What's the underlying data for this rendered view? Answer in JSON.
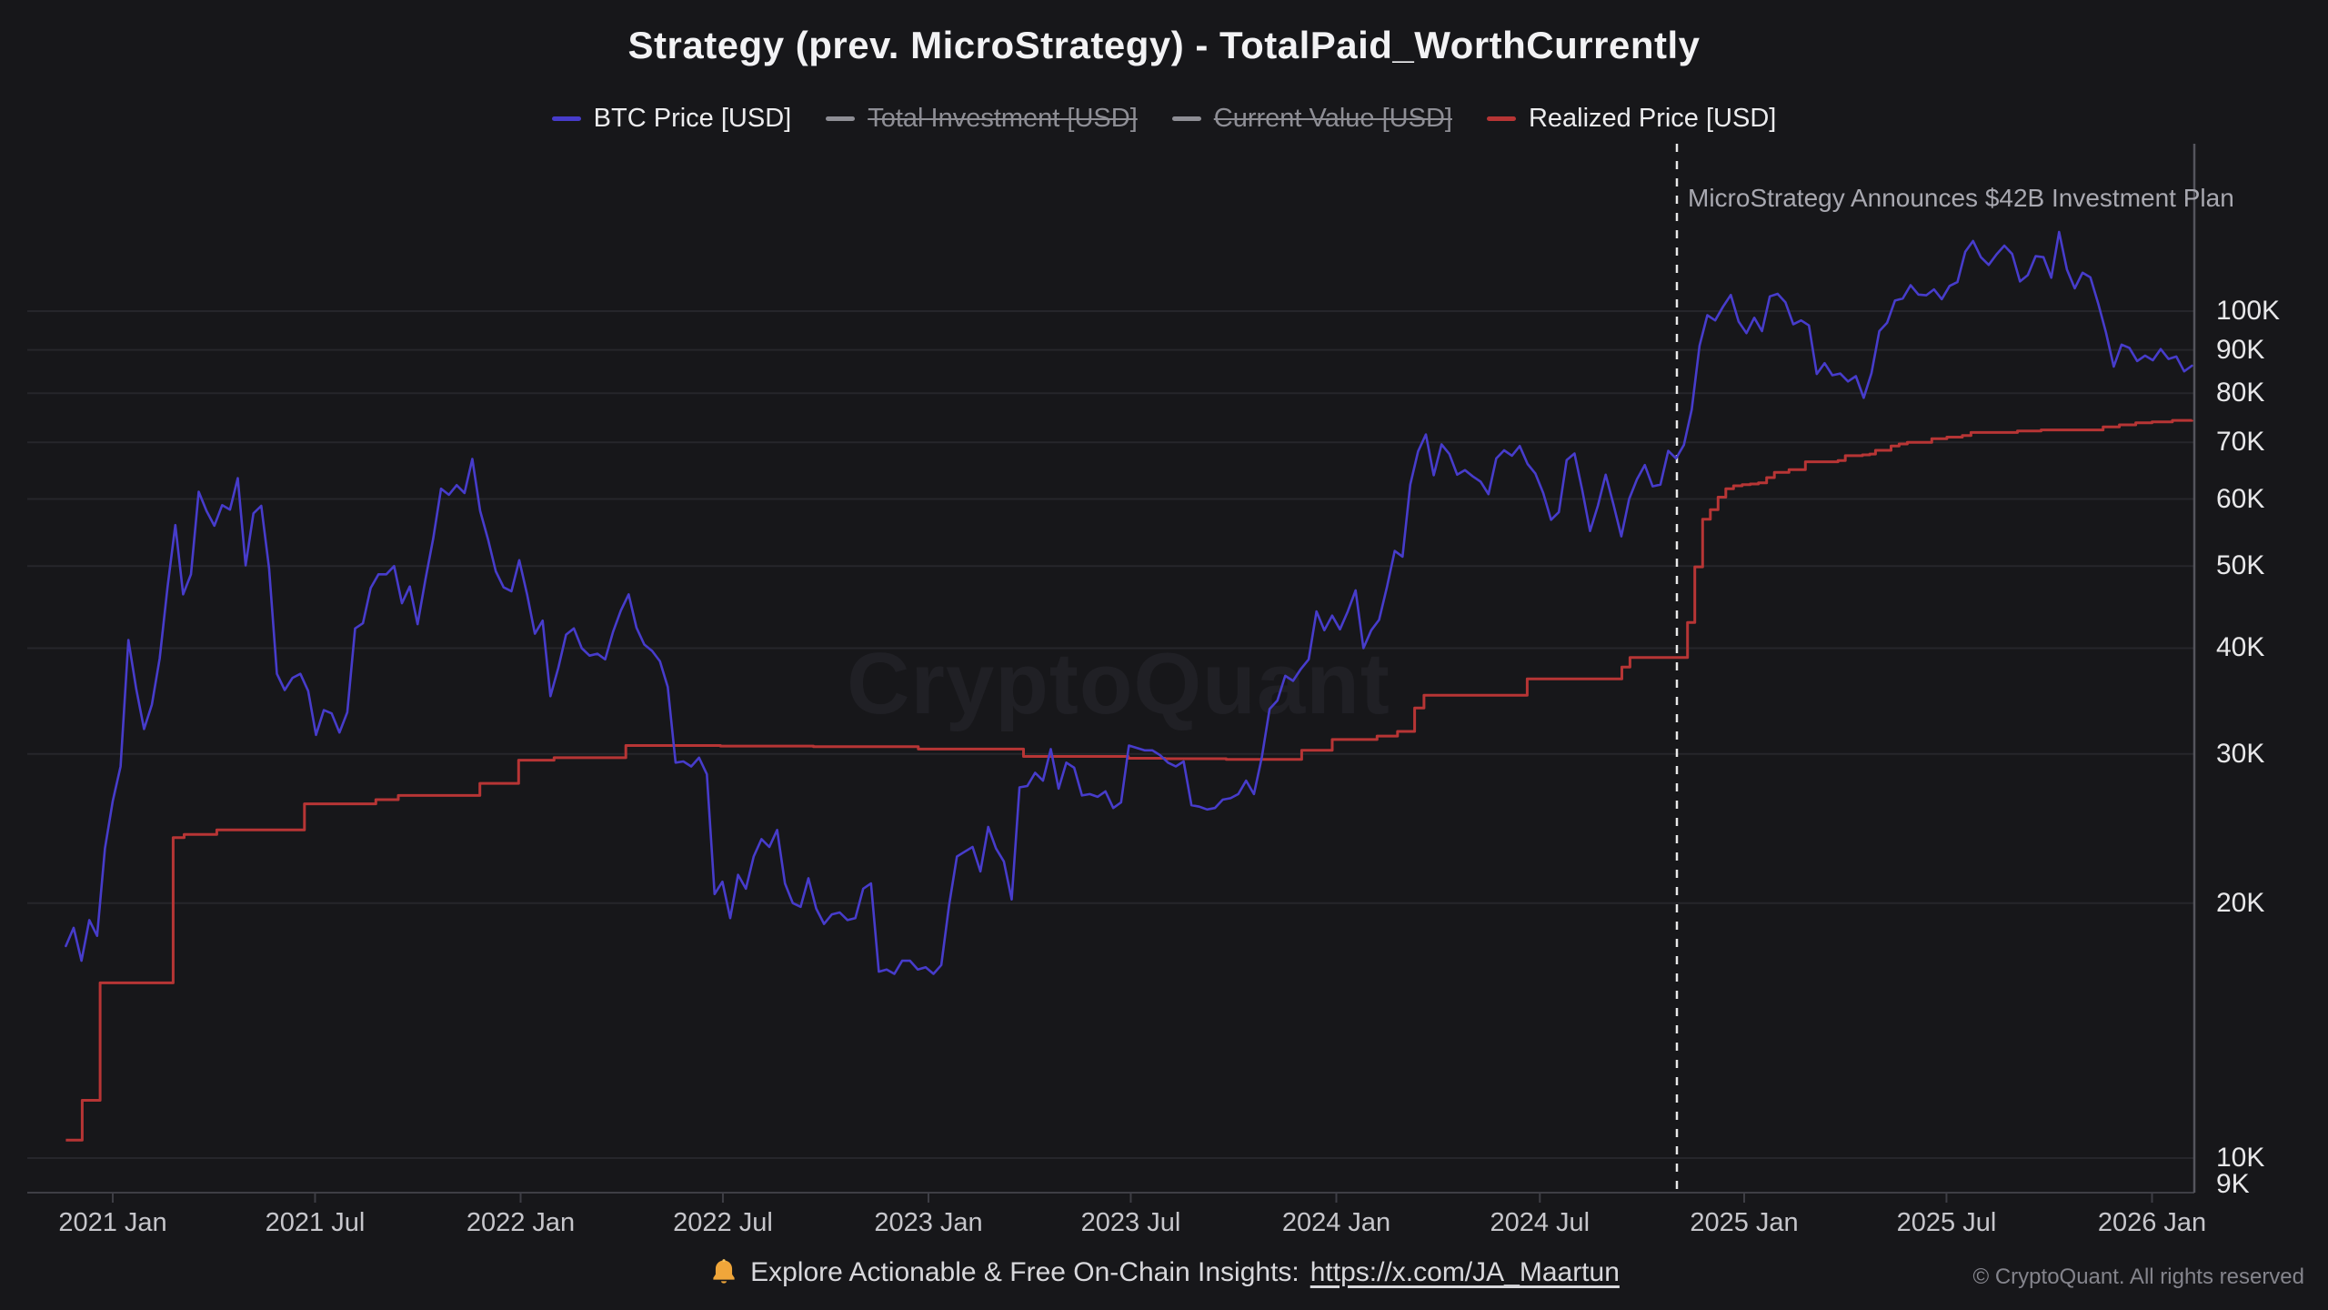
{
  "title": "Strategy (prev. MicroStrategy) - TotalPaid_WorthCurrently",
  "legend": {
    "items": [
      {
        "label": "BTC Price [USD]",
        "color": "#473CCB",
        "struck": false
      },
      {
        "label": "Total Investment [USD]",
        "color": "#8e8e95",
        "struck": true
      },
      {
        "label": "Current Value [USD]",
        "color": "#8e8e95",
        "struck": true
      },
      {
        "label": "Realized Price [USD]",
        "color": "#B73535",
        "struck": false
      }
    ]
  },
  "annotation": {
    "text": "MicroStrategy Announces $42B Investment Plan"
  },
  "watermark": "CryptoQuant",
  "footer": {
    "promo_text": "Explore Actionable & Free On-Chain Insights:",
    "link_text": "https://x.com/JA_Maartun",
    "copyright": "© CryptoQuant. All rights reserved"
  },
  "colors": {
    "background": "#17171a",
    "btc_line": "#473CCB",
    "realized_line": "#B73535",
    "gridline": "#26262b",
    "axis": "#3e3e45",
    "right_border": "#55555d",
    "dashed_line": "#e8e8e8"
  },
  "chart_data": {
    "type": "line",
    "title": "Strategy (prev. MicroStrategy) - TotalPaid_WorthCurrently",
    "y_scale": "log",
    "y_unit": "USD (thousands)",
    "ylim_k": [
      9,
      130
    ],
    "x_range_years": [
      2020.885,
      2026.098
    ],
    "grid": "horizontal",
    "legend_position": "top",
    "annotation_line_year": 2024.835,
    "y_ticks": [
      {
        "v": 100,
        "label": "100K"
      },
      {
        "v": 90,
        "label": "90K"
      },
      {
        "v": 80,
        "label": "80K"
      },
      {
        "v": 70,
        "label": "70K"
      },
      {
        "v": 60,
        "label": "60K"
      },
      {
        "v": 50,
        "label": "50K"
      },
      {
        "v": 40,
        "label": "40K"
      },
      {
        "v": 30,
        "label": "30K"
      },
      {
        "v": 20,
        "label": "20K"
      },
      {
        "v": 10,
        "label": "10K"
      },
      {
        "v": 9,
        "label": "9K"
      }
    ],
    "x_ticks": [
      {
        "t": 2021.0,
        "label": "2021 Jan"
      },
      {
        "t": 2021.496,
        "label": "2021 Jul"
      },
      {
        "t": 2022.0,
        "label": "2022 Jan"
      },
      {
        "t": 2022.496,
        "label": "2022 Jul"
      },
      {
        "t": 2023.0,
        "label": "2023 Jan"
      },
      {
        "t": 2023.496,
        "label": "2023 Jul"
      },
      {
        "t": 2024.0,
        "label": "2024 Jan"
      },
      {
        "t": 2024.499,
        "label": "2024 Jul"
      },
      {
        "t": 2025.0,
        "label": "2025 Jan"
      },
      {
        "t": 2025.496,
        "label": "2025 Jul"
      },
      {
        "t": 2026.0,
        "label": "2026 Jan"
      }
    ],
    "hidden_series": [
      "Total Investment [USD]",
      "Current Value [USD]"
    ],
    "series": [
      {
        "name": "BTC Price [USD]",
        "color": "#473CCB",
        "sampling": "weekly",
        "t0": 2020.885,
        "dt": 0.019165,
        "values_k": [
          17.8,
          18.7,
          17.1,
          19.1,
          18.3,
          23.2,
          26.4,
          29.0,
          40.9,
          35.8,
          32.1,
          34.3,
          38.9,
          47.2,
          55.9,
          46.3,
          48.9,
          61.2,
          58.1,
          55.8,
          59.0,
          58.3,
          63.5,
          50.1,
          57.7,
          58.9,
          49.7,
          37.3,
          35.7,
          36.9,
          37.3,
          35.6,
          31.6,
          33.8,
          33.5,
          31.8,
          33.6,
          42.2,
          42.8,
          47.1,
          48.9,
          48.9,
          50.0,
          45.2,
          47.3,
          42.7,
          48.2,
          53.9,
          61.7,
          60.7,
          62.3,
          61.0,
          66.9,
          58.1,
          53.8,
          49.3,
          47.2,
          46.7,
          50.8,
          46.3,
          41.6,
          43.1,
          35.1,
          37.9,
          41.5,
          42.2,
          40.0,
          39.2,
          39.4,
          38.8,
          41.8,
          44.3,
          46.3,
          42.3,
          40.4,
          39.7,
          38.6,
          36.0,
          29.3,
          29.4,
          29.0,
          29.7,
          28.4,
          20.5,
          21.2,
          19.2,
          21.6,
          20.8,
          22.7,
          23.8,
          23.3,
          24.4,
          21.1,
          20.0,
          19.8,
          21.4,
          19.7,
          18.9,
          19.4,
          19.5,
          19.1,
          19.2,
          20.8,
          21.1,
          16.6,
          16.7,
          16.5,
          17.1,
          17.1,
          16.7,
          16.8,
          16.5,
          16.9,
          19.9,
          22.7,
          23.0,
          23.3,
          21.8,
          24.6,
          23.2,
          22.4,
          20.2,
          27.4,
          27.5,
          28.5,
          27.9,
          30.4,
          27.3,
          29.3,
          28.9,
          26.8,
          26.9,
          26.7,
          27.1,
          25.9,
          26.3,
          30.7,
          30.5,
          30.3,
          30.3,
          29.9,
          29.3,
          29.0,
          29.4,
          26.1,
          26.0,
          25.8,
          25.9,
          26.5,
          26.6,
          26.9,
          27.9,
          26.9,
          29.7,
          33.9,
          34.7,
          37.1,
          36.6,
          37.8,
          38.8,
          44.2,
          42.0,
          43.7,
          42.1,
          44.2,
          46.8,
          40.0,
          42.0,
          43.2,
          47.2,
          52.1,
          51.3,
          62.4,
          68.3,
          71.5,
          64.0,
          69.6,
          67.8,
          64.1,
          64.9,
          63.8,
          62.9,
          60.8,
          67.0,
          68.5,
          67.5,
          69.3,
          66.0,
          64.3,
          61.0,
          56.7,
          57.9,
          66.7,
          67.9,
          61.5,
          55.0,
          58.9,
          64.1,
          59.1,
          54.2,
          60.0,
          63.3,
          65.8,
          62.1,
          62.4,
          68.4,
          67.0,
          69.5,
          76.5,
          91.0,
          98.9,
          97.5,
          101.2,
          104.5,
          97.2,
          94.2,
          98.2,
          94.7,
          104.1,
          104.8,
          102.4,
          96.5,
          97.5,
          96.2,
          84.3,
          86.8,
          84.0,
          84.4,
          82.6,
          83.8,
          79.0,
          84.5,
          94.7,
          96.9,
          102.9,
          103.5,
          107.3,
          104.6,
          104.4,
          106.1,
          103.3,
          107.1,
          108.2,
          117.5,
          121.0,
          115.8,
          113.4,
          116.7,
          119.5,
          116.8,
          108.4,
          110.3,
          116.1,
          115.8,
          109.5,
          124.0,
          112.0,
          106.4,
          111.0,
          109.6,
          102.1,
          94.4,
          86.0,
          91.3,
          90.5,
          87.3,
          88.6,
          87.5,
          90.2,
          87.8,
          88.4,
          84.9,
          86.2
        ]
      },
      {
        "name": "Realized Price [USD]",
        "color": "#B73535",
        "sampling": "step",
        "points": [
          [
            2020.885,
            10.5
          ],
          [
            2020.925,
            11.7
          ],
          [
            2020.969,
            16.1
          ],
          [
            2021.148,
            23.9
          ],
          [
            2021.175,
            24.1
          ],
          [
            2021.255,
            24.4
          ],
          [
            2021.47,
            26.2
          ],
          [
            2021.645,
            26.5
          ],
          [
            2021.7,
            26.8
          ],
          [
            2021.9,
            27.7
          ],
          [
            2021.995,
            29.5
          ],
          [
            2022.082,
            29.7
          ],
          [
            2022.258,
            30.7
          ],
          [
            2022.49,
            30.65
          ],
          [
            2022.718,
            30.6
          ],
          [
            2022.975,
            30.4
          ],
          [
            2023.233,
            29.8
          ],
          [
            2023.49,
            29.65
          ],
          [
            2023.58,
            29.62
          ],
          [
            2023.73,
            29.56
          ],
          [
            2023.915,
            30.3
          ],
          [
            2023.99,
            31.2
          ],
          [
            2024.1,
            31.5
          ],
          [
            2024.15,
            31.9
          ],
          [
            2024.192,
            34.0
          ],
          [
            2024.215,
            35.2
          ],
          [
            2024.468,
            36.8
          ],
          [
            2024.7,
            38.0
          ],
          [
            2024.72,
            39.0
          ],
          [
            2024.861,
            42.9
          ],
          [
            2024.879,
            49.9
          ],
          [
            2024.898,
            56.8
          ],
          [
            2024.917,
            58.3
          ],
          [
            2024.936,
            60.3
          ],
          [
            2024.955,
            61.7
          ],
          [
            2024.974,
            62.2
          ],
          [
            2024.995,
            62.4
          ],
          [
            2025.015,
            62.5
          ],
          [
            2025.035,
            62.7
          ],
          [
            2025.055,
            63.6
          ],
          [
            2025.074,
            64.5
          ],
          [
            2025.11,
            65.0
          ],
          [
            2025.15,
            66.4
          ],
          [
            2025.23,
            66.6
          ],
          [
            2025.248,
            67.5
          ],
          [
            2025.29,
            67.65
          ],
          [
            2025.308,
            67.8
          ],
          [
            2025.322,
            68.5
          ],
          [
            2025.36,
            69.3
          ],
          [
            2025.38,
            69.7
          ],
          [
            2025.4,
            70.0
          ],
          [
            2025.46,
            70.7
          ],
          [
            2025.497,
            71.0
          ],
          [
            2025.535,
            71.3
          ],
          [
            2025.556,
            71.9
          ],
          [
            2025.67,
            72.2
          ],
          [
            2025.728,
            72.4
          ],
          [
            2025.88,
            73.0
          ],
          [
            2025.92,
            73.4
          ],
          [
            2025.96,
            73.8
          ],
          [
            2026.0,
            74.0
          ],
          [
            2026.05,
            74.3
          ],
          [
            2026.098,
            74.4
          ]
        ]
      }
    ]
  }
}
